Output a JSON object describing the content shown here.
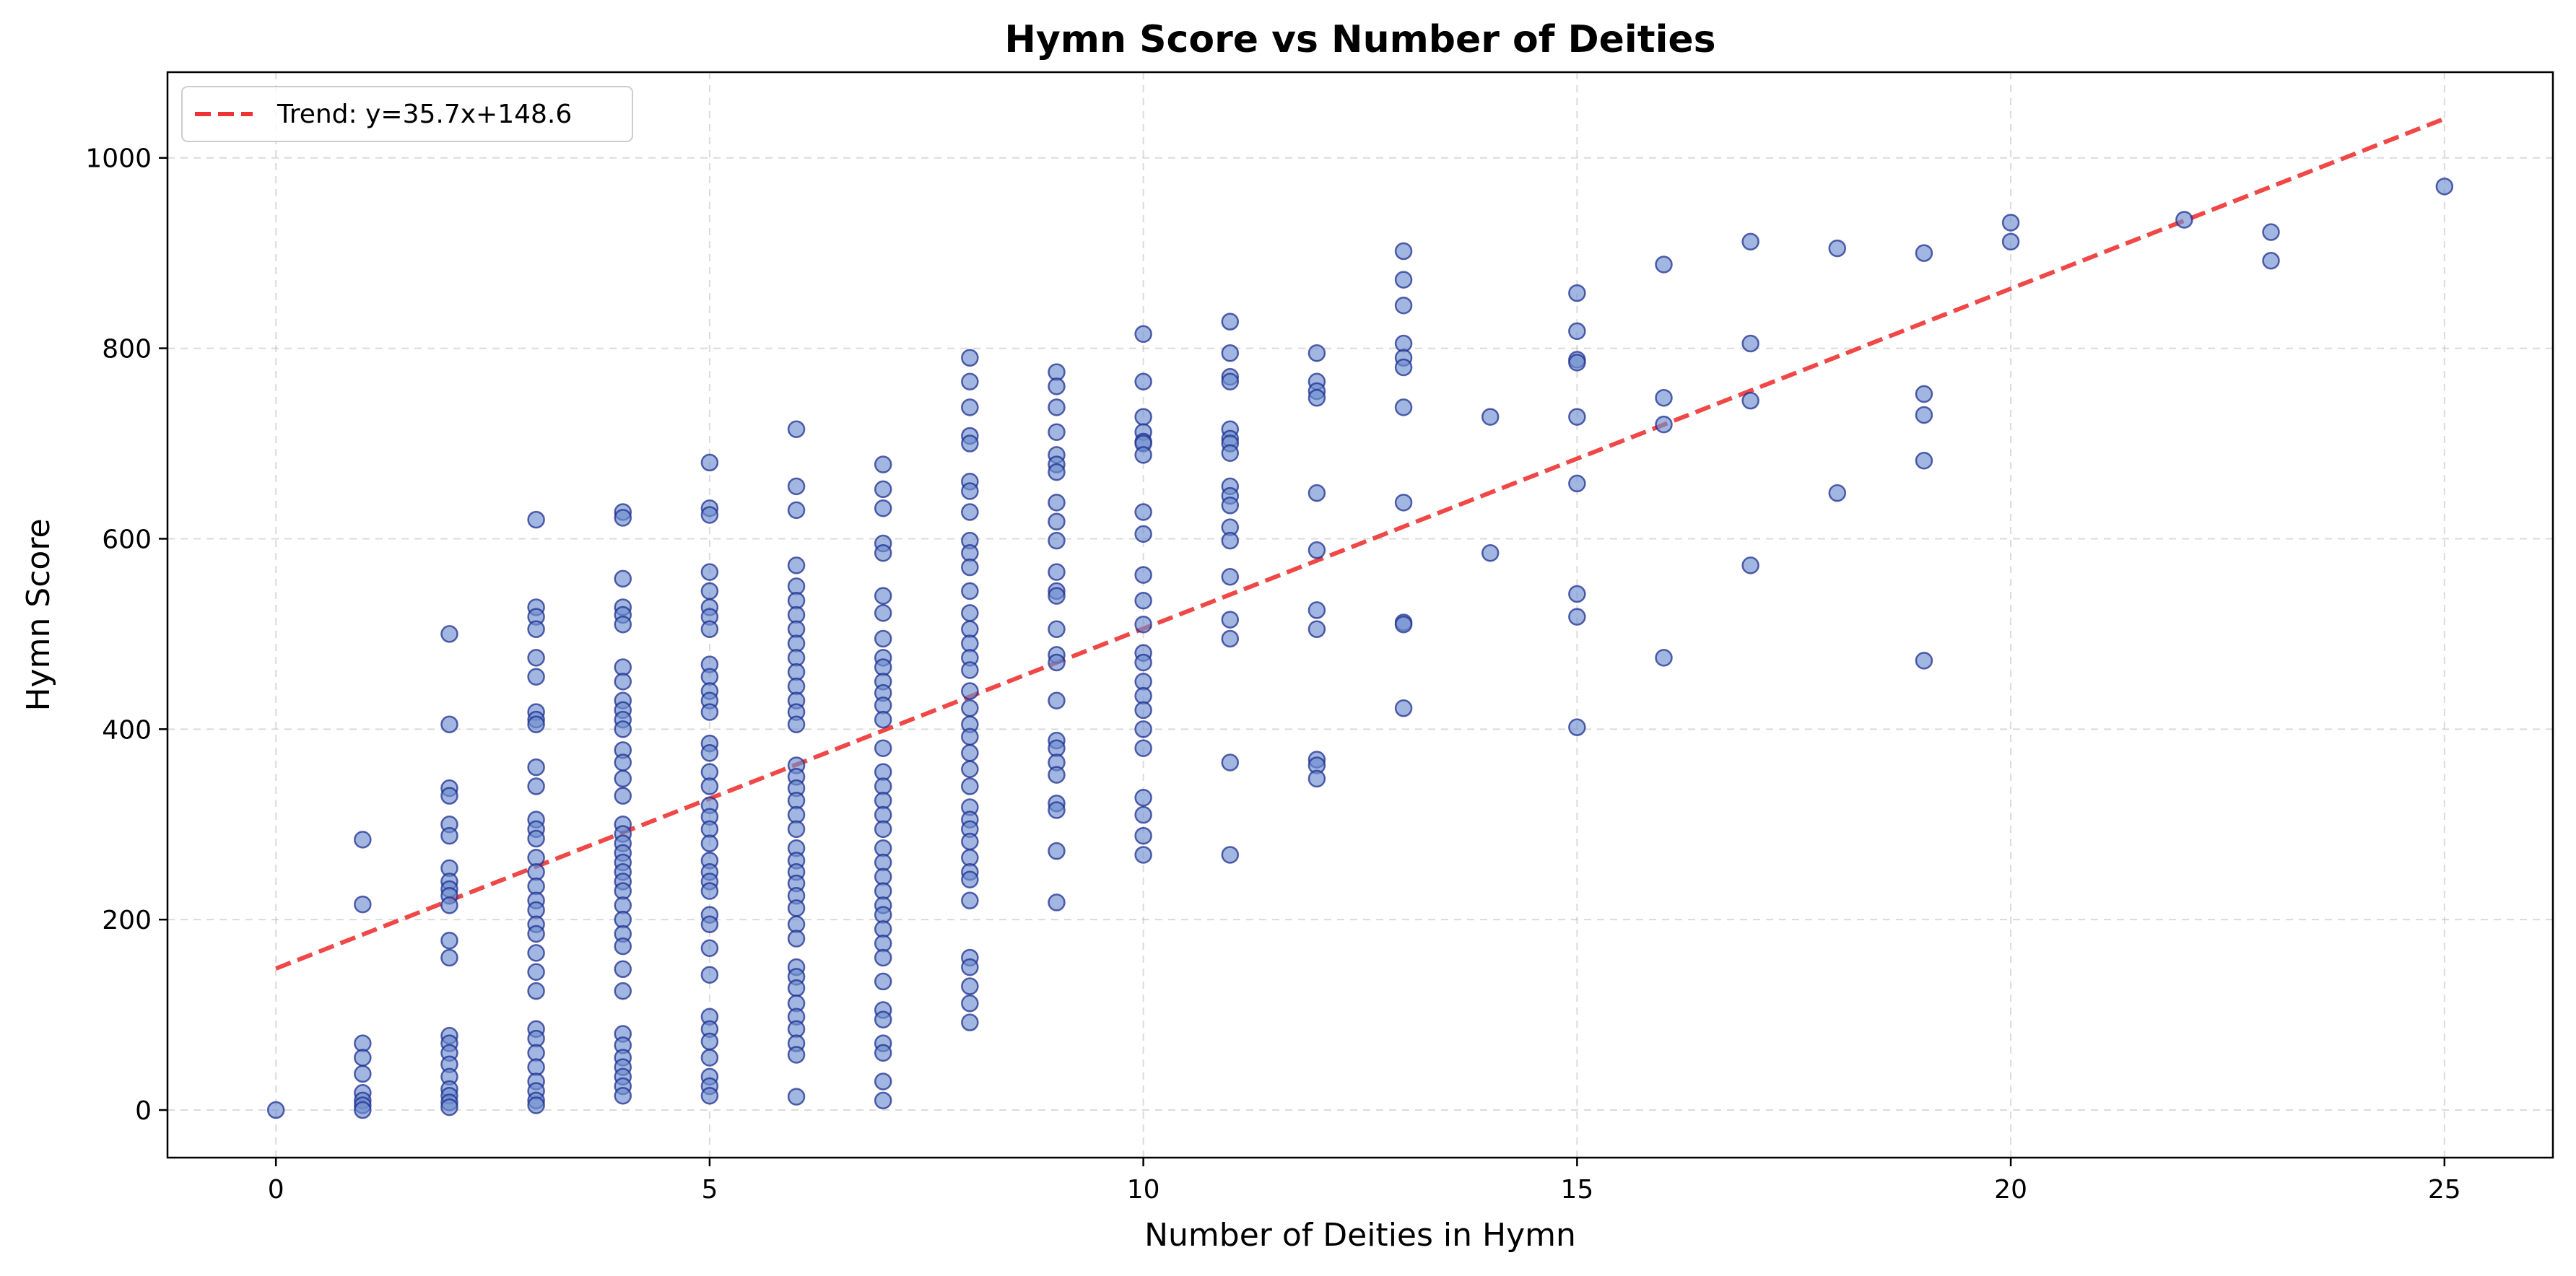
{
  "chart_data": {
    "type": "scatter",
    "title": "Hymn Score vs Number of Deities",
    "xlabel": "Number of Deities in Hymn",
    "ylabel": "Hymn Score",
    "xlim": [
      -1.25,
      26.25
    ],
    "ylim": [
      -50,
      1090
    ],
    "xticks": [
      0,
      5,
      10,
      15,
      20,
      25
    ],
    "yticks": [
      0,
      200,
      400,
      600,
      800,
      1000
    ],
    "grid": true,
    "legend_position": "top-left",
    "colors": {
      "points_fill": "#6f8fd0",
      "points_edge": "#1f2f8f",
      "trend": "#ee3333"
    },
    "trend": {
      "label": "Trend: y=35.7x+148.6",
      "slope": 35.7,
      "intercept": 148.6,
      "x_range": [
        0,
        25
      ]
    },
    "points": {
      "0": [
        0
      ],
      "1": [
        284,
        216,
        70,
        55,
        38,
        18,
        10,
        5,
        0
      ],
      "2": [
        500,
        405,
        338,
        330,
        300,
        288,
        254,
        240,
        232,
        225,
        215,
        178,
        160,
        78,
        70,
        60,
        48,
        35,
        22,
        15,
        8,
        3
      ],
      "3": [
        620,
        528,
        518,
        505,
        475,
        455,
        418,
        410,
        405,
        360,
        340,
        305,
        295,
        285,
        265,
        250,
        235,
        220,
        210,
        195,
        185,
        165,
        145,
        125,
        85,
        75,
        60,
        45,
        30,
        20,
        10,
        5
      ],
      "4": [
        628,
        622,
        558,
        528,
        520,
        510,
        465,
        450,
        430,
        420,
        410,
        400,
        378,
        365,
        348,
        330,
        300,
        290,
        280,
        270,
        260,
        250,
        240,
        230,
        215,
        200,
        185,
        172,
        148,
        125,
        80,
        68,
        55,
        45,
        35,
        25,
        15
      ],
      "5": [
        680,
        632,
        625,
        565,
        545,
        528,
        518,
        505,
        468,
        455,
        440,
        430,
        418,
        385,
        375,
        355,
        340,
        320,
        308,
        295,
        280,
        262,
        250,
        240,
        230,
        205,
        195,
        170,
        142,
        98,
        85,
        72,
        55,
        35,
        25,
        15
      ],
      "6": [
        715,
        655,
        630,
        572,
        550,
        535,
        520,
        505,
        490,
        475,
        460,
        445,
        430,
        418,
        405,
        362,
        350,
        338,
        325,
        310,
        295,
        275,
        262,
        250,
        238,
        225,
        212,
        195,
        180,
        150,
        140,
        128,
        112,
        98,
        85,
        70,
        58,
        14
      ],
      "7": [
        678,
        652,
        632,
        595,
        585,
        540,
        522,
        495,
        475,
        465,
        450,
        438,
        425,
        410,
        380,
        355,
        340,
        325,
        310,
        295,
        275,
        260,
        245,
        230,
        215,
        205,
        190,
        175,
        160,
        135,
        105,
        95,
        70,
        60,
        30,
        10
      ],
      "8": [
        790,
        765,
        738,
        708,
        700,
        660,
        650,
        628,
        598,
        585,
        570,
        545,
        522,
        505,
        490,
        475,
        462,
        440,
        422,
        405,
        392,
        375,
        358,
        340,
        318,
        305,
        295,
        282,
        265,
        250,
        242,
        220,
        160,
        150,
        130,
        112,
        92
      ],
      "9": [
        775,
        760,
        738,
        712,
        688,
        678,
        670,
        638,
        618,
        598,
        565,
        545,
        540,
        505,
        478,
        470,
        430,
        388,
        380,
        365,
        352,
        322,
        315,
        272,
        218
      ],
      "10": [
        815,
        765,
        728,
        712,
        702,
        700,
        688,
        628,
        605,
        562,
        535,
        510,
        480,
        470,
        450,
        435,
        420,
        400,
        380,
        328,
        310,
        288,
        268
      ],
      "11": [
        828,
        795,
        770,
        765,
        715,
        705,
        700,
        690,
        655,
        645,
        635,
        612,
        598,
        560,
        515,
        495,
        365,
        268
      ],
      "12": [
        795,
        765,
        755,
        748,
        648,
        588,
        525,
        505,
        368,
        362,
        348
      ],
      "13": [
        902,
        872,
        845,
        805,
        790,
        780,
        738,
        638,
        512,
        510,
        422
      ],
      "14": [
        728,
        585
      ],
      "15": [
        858,
        818,
        788,
        785,
        728,
        658,
        542,
        518,
        402
      ],
      "16": [
        888,
        748,
        720,
        475
      ],
      "17": [
        912,
        805,
        745,
        572
      ],
      "18": [
        905,
        648
      ],
      "19": [
        900,
        752,
        730,
        682,
        472
      ],
      "20": [
        932,
        912
      ],
      "22": [
        935
      ],
      "23": [
        922,
        892
      ],
      "25": [
        970
      ]
    }
  }
}
